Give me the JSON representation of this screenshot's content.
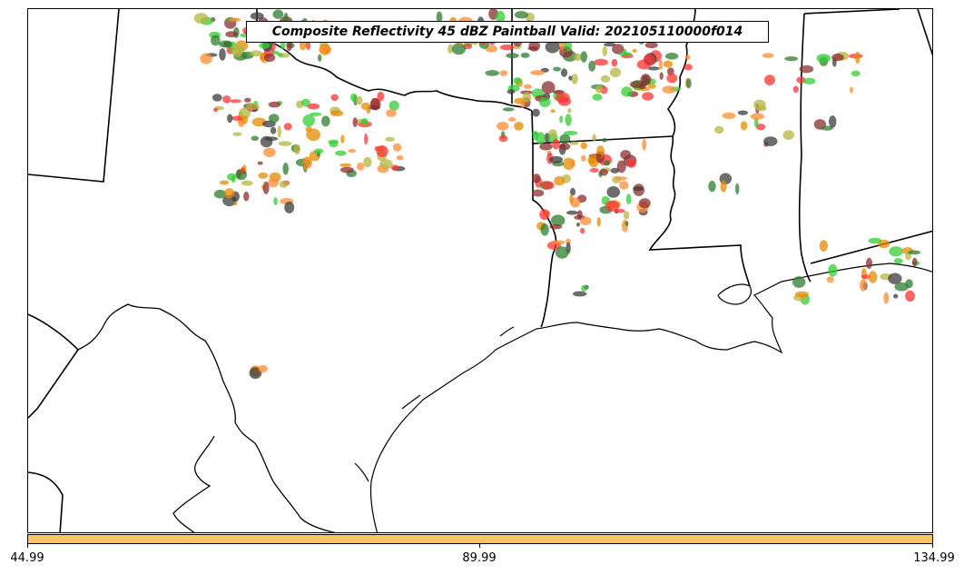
{
  "title": "Composite Reflectivity 45 dBZ Paintball Valid: 202105110000f014",
  "colorbar": {
    "color": "#ffc266",
    "ticks": [
      "44.99",
      "89.99",
      "134.99"
    ]
  },
  "palette": {
    "red": "#ff3333",
    "orange": "#ff8c33",
    "green": "#33cc33",
    "dark_green": "#2e7d2e",
    "olive": "#b5b542",
    "gray": "#3c3c3c",
    "brown": "#8b2d2d",
    "dark_orange": "#e68a00",
    "coastline": "#000000"
  }
}
